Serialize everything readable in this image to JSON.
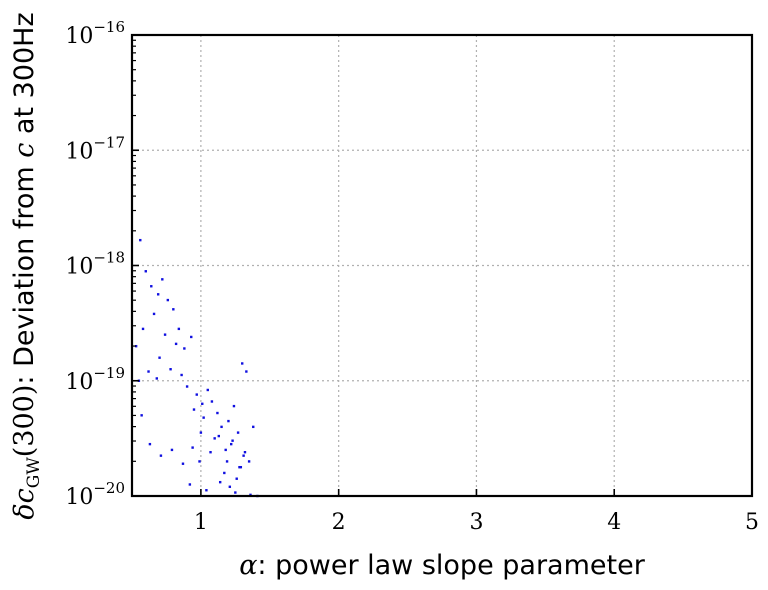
{
  "chart_data": {
    "type": "scatter",
    "xlabel": {
      "symbol": "α",
      "text": ": power law slope parameter"
    },
    "ylabel": {
      "symbol": "δc",
      "sub": "GW",
      "arg": "(300)",
      "text": ":  Deviation from ",
      "c": "c",
      "tail": " at 300Hz"
    },
    "xlim": [
      0.5,
      5
    ],
    "ylim": [
      1e-20,
      1e-16
    ],
    "yscale": "log",
    "grid": true,
    "x_ticks": [
      {
        "value": 1,
        "label": "1"
      },
      {
        "value": 2,
        "label": "2"
      },
      {
        "value": 3,
        "label": "3"
      },
      {
        "value": 4,
        "label": "4"
      },
      {
        "value": 5,
        "label": "5"
      }
    ],
    "y_ticks": [
      {
        "exp": -20,
        "base": "10",
        "sup": "−20"
      },
      {
        "exp": -19,
        "base": "10",
        "sup": "−19"
      },
      {
        "exp": -18,
        "base": "10",
        "sup": "−18"
      },
      {
        "exp": -17,
        "base": "10",
        "sup": "−17"
      },
      {
        "exp": -16,
        "base": "10",
        "sup": "−16"
      }
    ],
    "marker_color": "#1010e0",
    "series": [
      {
        "x": [
          0.56,
          0.6,
          0.64,
          0.69,
          0.72,
          0.76,
          0.8,
          0.58,
          0.66,
          0.74,
          0.82,
          0.84,
          0.88,
          0.93,
          0.7,
          0.62,
          0.53,
          0.55,
          0.68,
          0.78,
          0.86,
          0.9,
          0.97,
          1.01,
          1.05,
          0.95,
          1.02,
          1.08,
          1.12,
          1.15,
          1.2,
          1.24,
          1.27,
          1.3,
          1.33,
          1.1,
          1.18,
          1.22,
          1.35,
          1.38,
          1.31,
          1.28,
          1.26,
          1.17,
          0.99,
          0.92,
          1.04,
          1.14,
          1.21,
          1.25,
          1.36,
          0.57,
          0.63,
          0.71,
          0.79,
          0.87,
          0.94,
          1.0,
          1.07,
          1.13,
          1.19,
          1.23,
          1.29,
          1.32,
          1.41
        ],
        "y": [
          -17.78,
          -18.05,
          -18.18,
          -18.25,
          -18.12,
          -18.3,
          -18.38,
          -18.55,
          -18.42,
          -18.6,
          -18.68,
          -18.55,
          -18.72,
          -18.62,
          -18.8,
          -18.92,
          -18.7,
          -19.0,
          -18.98,
          -18.9,
          -18.95,
          -19.05,
          -19.12,
          -19.2,
          -19.08,
          -19.25,
          -19.32,
          -19.18,
          -19.28,
          -19.4,
          -19.35,
          -19.22,
          -19.45,
          -18.85,
          -18.92,
          -19.5,
          -19.6,
          -19.55,
          -19.7,
          -19.4,
          -19.65,
          -19.75,
          -19.85,
          -19.8,
          -19.7,
          -19.9,
          -19.95,
          -19.88,
          -19.92,
          -19.97,
          -19.99,
          -19.3,
          -19.55,
          -19.65,
          -19.6,
          -19.72,
          -19.58,
          -19.45,
          -19.62,
          -19.48,
          -19.7,
          -19.52,
          -19.75,
          -19.62,
          -20.0
        ]
      }
    ]
  }
}
